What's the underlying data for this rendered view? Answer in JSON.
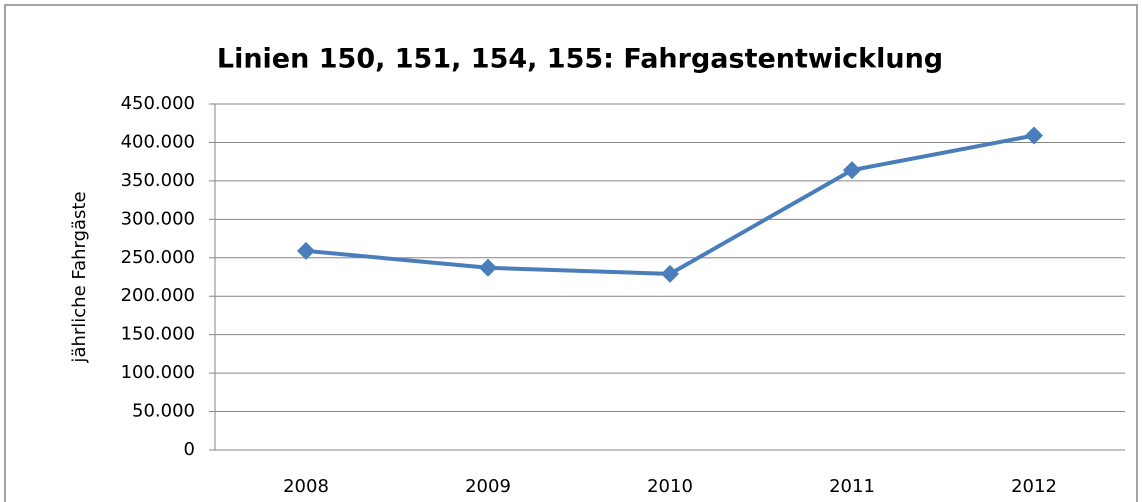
{
  "chart_data": {
    "type": "line",
    "title": "Linien 150, 151, 154, 155: Fahrgastentwicklung",
    "y_label": "jährliche Fahrgäste",
    "categories": [
      "2008",
      "2009",
      "2010",
      "2011",
      "2012"
    ],
    "series": [
      {
        "name": "Fahrgäste",
        "color": "#4a7ebb",
        "values": [
          259000,
          237000,
          229000,
          364000,
          409000
        ]
      }
    ],
    "ylim": [
      0,
      450000
    ],
    "yticks": [
      0,
      {
        "value": 50000,
        "label": "50.000"
      },
      {
        "value": 100000,
        "label": "100.000"
      },
      {
        "value": 150000,
        "label": "150.000"
      },
      {
        "value": 200000,
        "label": "200.000"
      },
      {
        "value": 250000,
        "label": "250.000"
      },
      {
        "value": 300000,
        "label": "300.000"
      },
      {
        "value": 350000,
        "label": "350.000"
      },
      {
        "value": 400000,
        "label": "400.000"
      },
      {
        "value": 450000,
        "label": "450.000"
      }
    ],
    "grid": true,
    "legend": false
  }
}
